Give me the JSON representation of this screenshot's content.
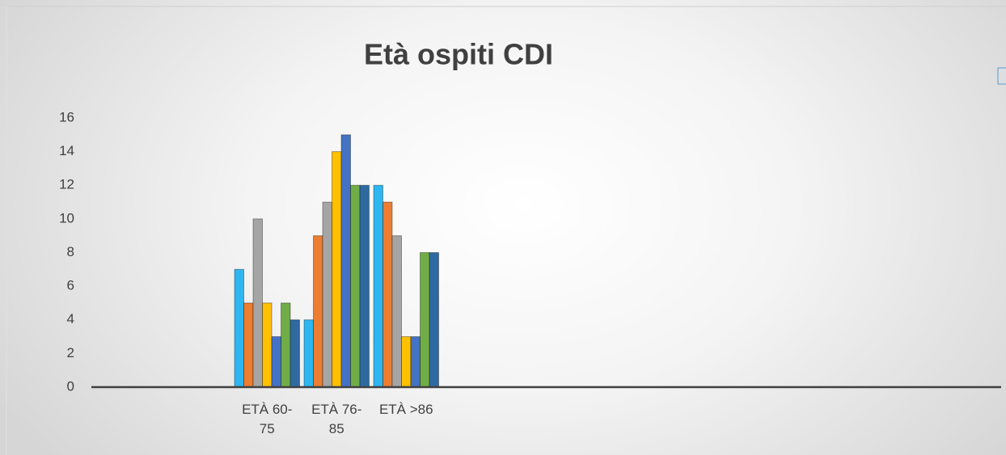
{
  "chart_data": {
    "type": "bar",
    "title": "Età ospiti CDI",
    "categories": [
      "ETÀ 60-75",
      "ETÀ 76-85",
      "ETÀ >86"
    ],
    "series": [
      {
        "color": "#2eb6f0",
        "values": [
          7,
          4,
          12
        ]
      },
      {
        "color": "#ed7d31",
        "values": [
          5,
          9,
          11
        ]
      },
      {
        "color": "#a5a5a5",
        "values": [
          10,
          11,
          9
        ]
      },
      {
        "color": "#ffc000",
        "values": [
          5,
          14,
          3
        ]
      },
      {
        "color": "#4472c4",
        "values": [
          3,
          15,
          3
        ]
      },
      {
        "color": "#70ad47",
        "values": [
          5,
          12,
          8
        ]
      },
      {
        "color": "#2e6aa0",
        "values": [
          4,
          12,
          8
        ]
      }
    ],
    "ylim": [
      0,
      16
    ],
    "yticks": [
      0,
      2,
      4,
      6,
      8,
      10,
      12,
      14,
      16
    ],
    "grid": false
  }
}
